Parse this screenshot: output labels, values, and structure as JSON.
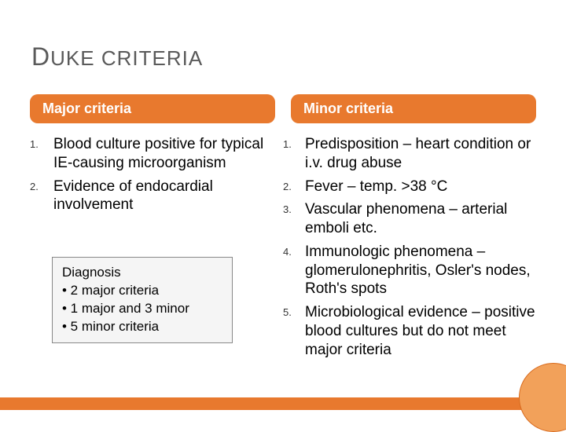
{
  "title_parts": {
    "cap1": "D",
    "rest1": "UKE",
    "space": " ",
    "rest2": "CRITERIA"
  },
  "headers": {
    "major": "Major criteria",
    "minor": "Minor criteria"
  },
  "major": [
    {
      "n": "1.",
      "t": "Blood culture positive for typical IE-causing microorganism"
    },
    {
      "n": "2.",
      "t": "Evidence of endocardial involvement"
    }
  ],
  "minor": [
    {
      "n": "1.",
      "t": "Predisposition – heart condition or i.v. drug abuse"
    },
    {
      "n": "2.",
      "t": "Fever – temp. >38 °C"
    },
    {
      "n": "3.",
      "t": "Vascular phenomena – arterial emboli etc."
    },
    {
      "n": "4.",
      "t": "Immunologic phenomena – glomerulonephritis, Osler's nodes, Roth's spots"
    },
    {
      "n": "5.",
      "t": "Microbiological evidence – positive blood cultures but do not meet major criteria"
    }
  ],
  "diagnosis": {
    "title": "Diagnosis",
    "lines": [
      "• 2 major criteria",
      "• 1 major and 3 minor",
      "• 5 minor criteria"
    ]
  },
  "colors": {
    "accent": "#e8792e",
    "circle": "#f2a15a",
    "title": "#5a5a5a"
  }
}
